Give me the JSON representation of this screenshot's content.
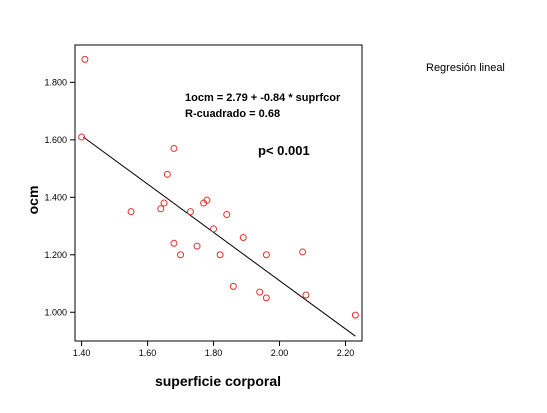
{
  "legend": {
    "label": "Regresión lineal",
    "position": "top-right"
  },
  "chart_data": {
    "type": "scatter",
    "xlabel": "superficie corporal",
    "ylabel": "ocm",
    "xlim": [
      1.38,
      2.25
    ],
    "ylim": [
      0.9,
      1.93
    ],
    "x_ticks": [
      "1.40",
      "1.60",
      "1.80",
      "2.00",
      "2.20"
    ],
    "y_ticks": [
      "1.000",
      "1.200",
      "1.400",
      "1.600",
      "1.800"
    ],
    "x_tick_values": [
      1.4,
      1.6,
      1.8,
      2.0,
      2.2
    ],
    "y_tick_values": [
      1.0,
      1.2,
      1.4,
      1.6,
      1.8
    ],
    "grid": false,
    "marker_color": "#e8302c",
    "line_color": "#000000",
    "annotations": {
      "equation": "1ocm = 2.79 + -0.84 * suprfcor",
      "r_squared": "R-cuadrado = 0.68",
      "p_value": "p< 0.001"
    },
    "regression": {
      "intercept": 2.79,
      "slope": -0.84,
      "x_range": [
        1.405,
        2.23
      ]
    },
    "points": [
      {
        "x": 1.41,
        "y": 1.88
      },
      {
        "x": 1.4,
        "y": 1.61
      },
      {
        "x": 1.68,
        "y": 1.57
      },
      {
        "x": 1.66,
        "y": 1.48
      },
      {
        "x": 1.78,
        "y": 1.39
      },
      {
        "x": 1.77,
        "y": 1.38
      },
      {
        "x": 1.65,
        "y": 1.38
      },
      {
        "x": 1.64,
        "y": 1.36
      },
      {
        "x": 1.55,
        "y": 1.35
      },
      {
        "x": 1.73,
        "y": 1.35
      },
      {
        "x": 1.84,
        "y": 1.34
      },
      {
        "x": 1.8,
        "y": 1.29
      },
      {
        "x": 1.89,
        "y": 1.26
      },
      {
        "x": 1.68,
        "y": 1.24
      },
      {
        "x": 1.75,
        "y": 1.23
      },
      {
        "x": 2.07,
        "y": 1.21
      },
      {
        "x": 1.7,
        "y": 1.2
      },
      {
        "x": 1.82,
        "y": 1.2
      },
      {
        "x": 1.96,
        "y": 1.2
      },
      {
        "x": 1.86,
        "y": 1.09
      },
      {
        "x": 1.94,
        "y": 1.07
      },
      {
        "x": 2.08,
        "y": 1.06
      },
      {
        "x": 1.96,
        "y": 1.05
      },
      {
        "x": 2.23,
        "y": 0.99
      }
    ]
  }
}
